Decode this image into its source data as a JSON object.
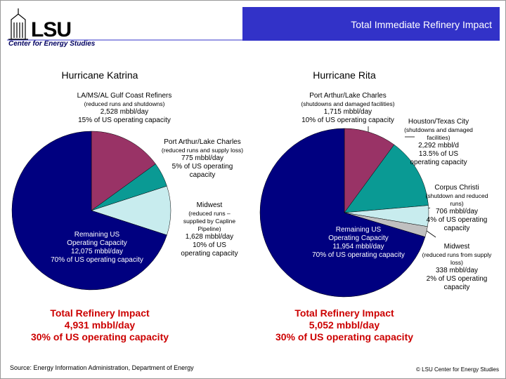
{
  "header": {
    "title": "Total Immediate Refinery Impact",
    "logo": "LSU",
    "subtitle": "Center for Energy Studies"
  },
  "chart_data": [
    {
      "type": "pie",
      "title": "Hurricane Katrina",
      "categories": [
        "LA/MS/AL Gulf Coast Refiners",
        "Port Arthur/Lake Charles",
        "Midwest",
        "Remaining US"
      ],
      "details": [
        [
          "(reduced runs and shutdowns)",
          "2,528 mbbl/day"
        ],
        [
          "(reduced runs and supply loss)",
          "775 mbbl/day"
        ],
        [
          "(reduced runs – supplied by Capline Pipeline)",
          "1,628 mbbl/day"
        ],
        [
          "Operating Capacity",
          "12,075 mbbl/day"
        ]
      ],
      "values": [
        15,
        5,
        10,
        70
      ],
      "value_labels": [
        "15% of US operating capacity",
        "5% of US operating capacity",
        "10% of US operating capacity",
        "70% of US operating capacity"
      ],
      "colors": [
        "#993366",
        "#0a9a94",
        "#c8ecee",
        "#000080"
      ],
      "total": {
        "title": "Total Refinery Impact",
        "amount": "4,931 mbbl/day",
        "share": "30% of US operating capacity"
      }
    },
    {
      "type": "pie",
      "title": "Hurricane Rita",
      "categories": [
        "Port Arthur/Lake Charles",
        "Houston/Texas City",
        "Corpus Christi",
        "Midwest",
        "Remaining US"
      ],
      "details": [
        [
          "(shutdowns and damaged facilities)",
          "1,715 mbbl/day"
        ],
        [
          "(shutdowns and damaged facilities)",
          "2,292 mbbl/d"
        ],
        [
          "(shutdown and reduced runs)",
          "706 mbbl/day"
        ],
        [
          "(reduced runs from supply loss)",
          "338 mbbl/day"
        ],
        [
          "Operating Capacity",
          "11,954 mbbl/day"
        ]
      ],
      "values": [
        10,
        13.5,
        4,
        2,
        70
      ],
      "value_labels": [
        "10% of US operating capacity",
        "13.5% of US operating capacity",
        "4% of US operating capacity",
        "2% of US operating capacity",
        "70% of US operating capacity"
      ],
      "colors": [
        "#993366",
        "#0a9a94",
        "#c8ecee",
        "#c0c0c0",
        "#000080"
      ],
      "total": {
        "title": "Total Refinery Impact",
        "amount": "5,052 mbbl/day",
        "share": "30% of US operating capacity"
      }
    }
  ],
  "footer": {
    "source": "Source: Energy Information Administration, Department of Energy",
    "copyright": "© LSU Center for Energy Studies"
  }
}
